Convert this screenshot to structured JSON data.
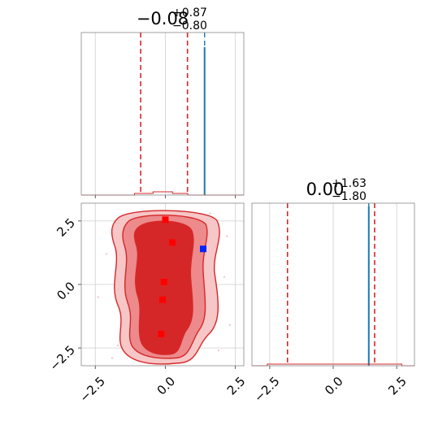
{
  "chart_data": [
    {
      "type": "line",
      "panel": "marginal-1d-top",
      "title": {
        "main": "−0.08",
        "plus": "+0.87",
        "minus": "−0.80"
      },
      "xlim": [
        -3.0,
        2.8
      ],
      "x_ticks": [
        -2.5,
        0.0,
        2.5
      ],
      "tick_labels_shown": false,
      "quantile_lines_red": [
        -0.88,
        -0.08,
        0.79
      ],
      "truth_line_blue": 1.4,
      "histogram_red_peak_x": -0.15,
      "histogram_blue_spike_x": 1.4,
      "grid": true,
      "colors": {
        "red": "#d62728",
        "blue": "#1f77b4"
      }
    },
    {
      "type": "scatter",
      "panel": "joint-2d-contour",
      "xlim": [
        -3.0,
        2.8
      ],
      "ylim": [
        -3.2,
        3.2
      ],
      "x_ticks": [
        -2.5,
        0.0,
        2.5
      ],
      "y_ticks": [
        -2.5,
        0.0,
        2.5
      ],
      "y_tick_labels": [
        "−2.5",
        "0.0",
        "2.5"
      ],
      "red_markers": [
        {
          "x": 0.0,
          "y": 2.55
        },
        {
          "x": 0.25,
          "y": 1.65
        },
        {
          "x": -0.05,
          "y": 0.1
        },
        {
          "x": -0.1,
          "y": -0.6
        },
        {
          "x": -0.15,
          "y": -1.95
        }
      ],
      "blue_marker": {
        "x": 1.35,
        "y": 1.4
      },
      "contour_levels": [
        "outer",
        "middle",
        "inner"
      ],
      "grid": true,
      "colors": {
        "fill_outer": "#f7c6c7",
        "fill_middle": "#ec8a8c",
        "fill_inner": "#d62728",
        "line": "#d62728",
        "blue": "#0022ff"
      }
    },
    {
      "type": "line",
      "panel": "marginal-1d-right",
      "title": {
        "main": "0.00",
        "plus": "+1.63",
        "minus": "−1.80"
      },
      "xlim": [
        -3.2,
        3.2
      ],
      "x_ticks": [
        -2.5,
        0.0,
        2.5
      ],
      "x_tick_labels": [
        "−2.5",
        "0.0",
        "2.5"
      ],
      "quantile_lines_red": [
        -1.8,
        0.0,
        1.63
      ],
      "truth_line_blue": 1.4,
      "histogram_red_peak_x": 0.0,
      "histogram_blue_spike_x": 1.4,
      "grid": true,
      "colors": {
        "red": "#d62728",
        "blue": "#1f77b4"
      }
    }
  ],
  "axis_labels": {
    "bottom_left_x_ticks": [
      "−2.5",
      "0.0",
      "2.5"
    ]
  }
}
